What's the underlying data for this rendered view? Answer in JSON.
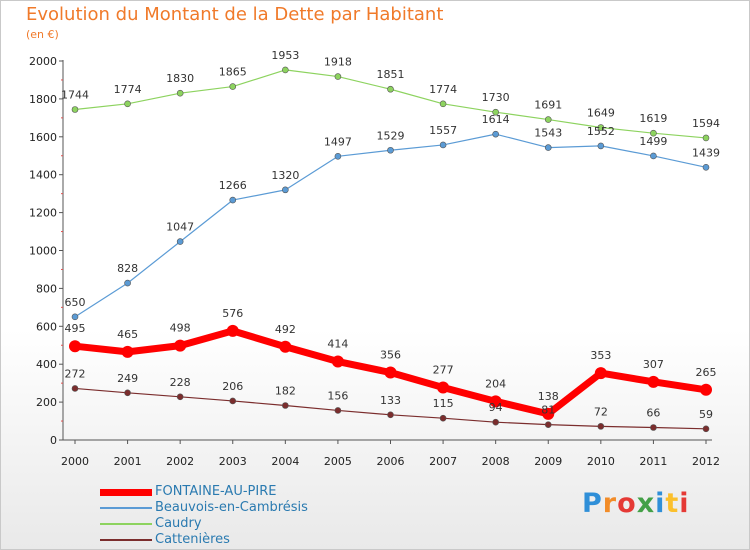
{
  "header": {
    "title": "Evolution du Montant de la Dette par Habitant",
    "subtitle": "(en €)"
  },
  "logo": {
    "text": "Proxiti",
    "colors": [
      "#2f8fd8",
      "#f28c28",
      "#e53935",
      "#43a047",
      "#2f8fd8",
      "#fbc02d",
      "#e53935"
    ]
  },
  "chart_data": {
    "type": "line",
    "title": "Evolution du Montant de la Dette par Habitant",
    "subtitle": "(en €)",
    "x": [
      "2000",
      "2001",
      "2002",
      "2003",
      "2004",
      "2005",
      "2006",
      "2007",
      "2008",
      "2009",
      "2010",
      "2011",
      "2012"
    ],
    "ylim": [
      0,
      2000
    ],
    "yticks": [
      0,
      200,
      400,
      600,
      800,
      1000,
      1200,
      1400,
      1600,
      1800,
      2000
    ],
    "grid": false,
    "legend_position": "bottom-left",
    "series": [
      {
        "name": "FONTAINE-AU-PIRE",
        "color": "#ff0000",
        "values": [
          495,
          465,
          498,
          576,
          492,
          414,
          356,
          277,
          204,
          138,
          353,
          307,
          265
        ]
      },
      {
        "name": "Beauvois-en-Cambrésis",
        "color": "#5b9bd5",
        "values": [
          650,
          828,
          1047,
          1266,
          1320,
          1497,
          1529,
          1557,
          1614,
          1543,
          1552,
          1499,
          1439
        ]
      },
      {
        "name": "Caudry",
        "color": "#8dd35f",
        "values": [
          1744,
          1774,
          1830,
          1865,
          1953,
          1918,
          1851,
          1774,
          1730,
          1691,
          1649,
          1619,
          1594
        ]
      },
      {
        "name": "Cattenières",
        "color": "#7b2d2d",
        "values": [
          272,
          249,
          228,
          206,
          182,
          156,
          133,
          115,
          94,
          81,
          72,
          66,
          59
        ]
      }
    ]
  }
}
